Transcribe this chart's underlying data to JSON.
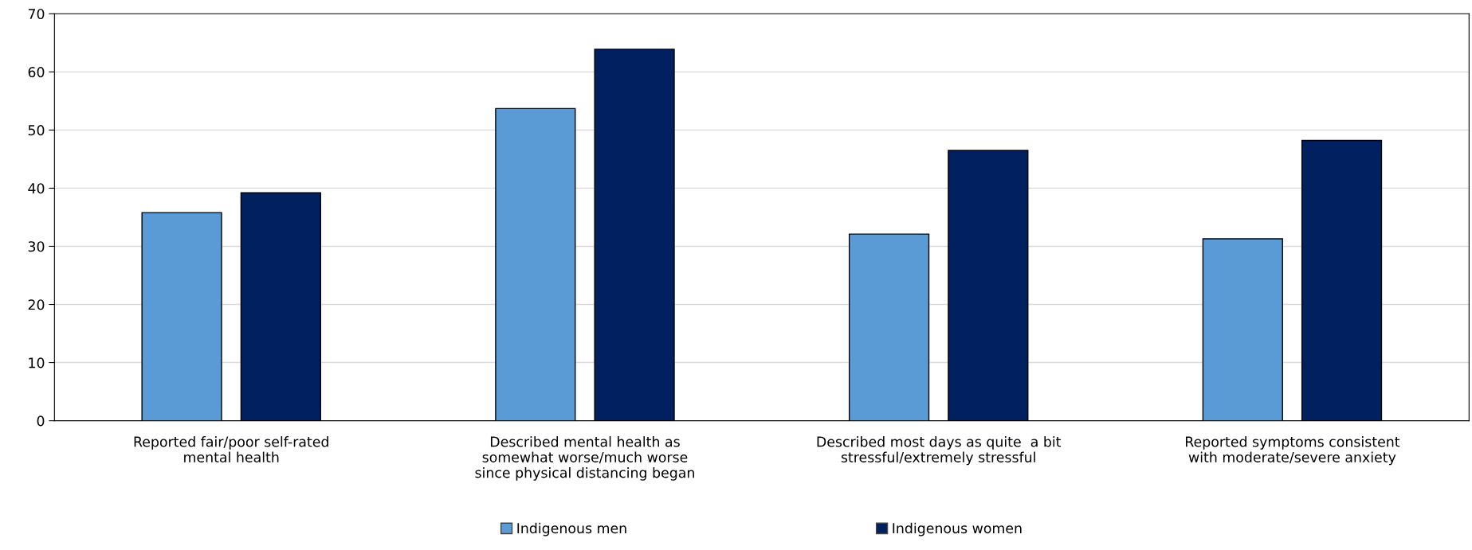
{
  "chart_data": {
    "type": "bar",
    "categories": [
      "Reported fair/poor self-rated\nmental health",
      "Described mental health as\nsomewhat worse/much worse\nsince physical distancing began",
      "Described most days as quite  a bit\nstressful/extremely stressful",
      "Reported symptoms consistent\nwith moderate/severe anxiety"
    ],
    "series": [
      {
        "name": "Indigenous men",
        "color": "#5b9bd5",
        "values": [
          35.8,
          53.7,
          32.1,
          31.3
        ]
      },
      {
        "name": "Indigenous women",
        "color": "#002060",
        "values": [
          39.2,
          63.9,
          46.5,
          48.2
        ]
      }
    ],
    "ylim": [
      0,
      70
    ],
    "yticks": [
      0,
      10,
      20,
      30,
      40,
      50,
      60,
      70
    ],
    "grid": "y",
    "legend": "bottom"
  }
}
